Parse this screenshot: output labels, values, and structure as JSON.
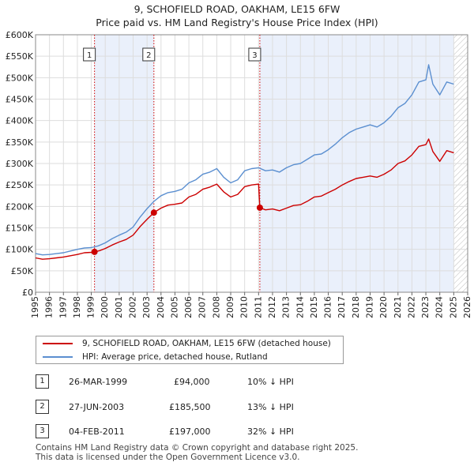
{
  "chart_data": {
    "type": "line",
    "title": "9, SCHOFIELD ROAD, OAKHAM, LE15 6FW",
    "subtitle": "Price paid vs. HM Land Registry's House Price Index (HPI)",
    "xlim": [
      1995,
      2026
    ],
    "ylim": [
      0,
      600000
    ],
    "yticks": [
      {
        "value": 0,
        "label": "£0"
      },
      {
        "value": 50000,
        "label": "£50K"
      },
      {
        "value": 100000,
        "label": "£100K"
      },
      {
        "value": 150000,
        "label": "£150K"
      },
      {
        "value": 200000,
        "label": "£200K"
      },
      {
        "value": 250000,
        "label": "£250K"
      },
      {
        "value": 300000,
        "label": "£300K"
      },
      {
        "value": 350000,
        "label": "£350K"
      },
      {
        "value": 400000,
        "label": "£400K"
      },
      {
        "value": 450000,
        "label": "£450K"
      },
      {
        "value": 500000,
        "label": "£500K"
      },
      {
        "value": 550000,
        "label": "£550K"
      },
      {
        "value": 600000,
        "label": "£600K"
      }
    ],
    "xticks": [
      "1995",
      "1996",
      "1997",
      "1998",
      "1999",
      "2000",
      "2001",
      "2002",
      "2003",
      "2004",
      "2005",
      "2006",
      "2007",
      "2008",
      "2009",
      "2010",
      "2011",
      "2012",
      "2013",
      "2014",
      "2015",
      "2016",
      "2017",
      "2018",
      "2019",
      "2020",
      "2021",
      "2022",
      "2023",
      "2024",
      "2025",
      "2026"
    ],
    "shaded_spans": [
      [
        1999.23,
        2003.49
      ],
      [
        2011.09,
        2025.0
      ]
    ],
    "hatched_after": 2025.0,
    "series": [
      {
        "name": "HPI: Average price, detached house, Rutland",
        "color": "#5b8fd0",
        "x": [
          1995,
          1995.5,
          1996,
          1996.5,
          1997,
          1997.5,
          1998,
          1998.5,
          1999,
          1999.5,
          2000,
          2000.5,
          2001,
          2001.5,
          2002,
          2002.5,
          2003,
          2003.5,
          2004,
          2004.5,
          2005,
          2005.5,
          2006,
          2006.5,
          2007,
          2007.5,
          2008,
          2008.5,
          2009,
          2009.5,
          2010,
          2010.5,
          2011,
          2011.5,
          2012,
          2012.5,
          2013,
          2013.5,
          2014,
          2014.5,
          2015,
          2015.5,
          2016,
          2016.5,
          2017,
          2017.5,
          2018,
          2018.5,
          2019,
          2019.5,
          2020,
          2020.5,
          2021,
          2021.5,
          2022,
          2022.5,
          2023,
          2023.2,
          2023.5,
          2024,
          2024.5,
          2025
        ],
        "y": [
          90000,
          87000,
          88000,
          90000,
          92000,
          96000,
          100000,
          103000,
          104000,
          108000,
          115000,
          125000,
          133000,
          140000,
          152000,
          175000,
          195000,
          212000,
          225000,
          232000,
          235000,
          240000,
          255000,
          262000,
          275000,
          280000,
          288000,
          268000,
          255000,
          262000,
          283000,
          288000,
          290000,
          283000,
          285000,
          280000,
          290000,
          297000,
          300000,
          310000,
          320000,
          322000,
          332000,
          345000,
          360000,
          372000,
          380000,
          385000,
          390000,
          385000,
          395000,
          410000,
          430000,
          440000,
          460000,
          490000,
          495000,
          530000,
          485000,
          460000,
          490000,
          485000
        ]
      },
      {
        "name": "9, SCHOFIELD ROAD, OAKHAM, LE15 6FW (detached house)",
        "color": "#cc0000",
        "x": [
          1995,
          1995.5,
          1996,
          1996.5,
          1997,
          1997.5,
          1998,
          1998.5,
          1999,
          1999.23,
          1999.6,
          2000,
          2000.5,
          2001,
          2001.5,
          2002,
          2002.5,
          2003,
          2003.49,
          2004,
          2004.5,
          2005,
          2005.5,
          2006,
          2006.5,
          2007,
          2007.5,
          2008,
          2008.5,
          2009,
          2009.5,
          2010,
          2010.5,
          2011,
          2011.09,
          2011.5,
          2012,
          2012.5,
          2013,
          2013.5,
          2014,
          2014.5,
          2015,
          2015.5,
          2016,
          2016.5,
          2017,
          2017.5,
          2018,
          2018.5,
          2019,
          2019.5,
          2020,
          2020.5,
          2021,
          2021.5,
          2022,
          2022.5,
          2023,
          2023.2,
          2023.5,
          2024,
          2024.5,
          2025
        ],
        "y": [
          80000,
          77000,
          78000,
          80000,
          82000,
          85000,
          88000,
          92000,
          93000,
          94000,
          97000,
          102000,
          110000,
          117000,
          123000,
          133000,
          153000,
          170000,
          185500,
          196000,
          203000,
          205000,
          208000,
          222000,
          228000,
          240000,
          245000,
          252000,
          234000,
          222000,
          228000,
          246000,
          250000,
          252000,
          197000,
          192000,
          194000,
          190000,
          196000,
          202000,
          204000,
          212000,
          222000,
          224000,
          232000,
          240000,
          250000,
          258000,
          265000,
          268000,
          271000,
          268000,
          275000,
          285000,
          300000,
          306000,
          320000,
          340000,
          344000,
          357000,
          328000,
          305000,
          330000,
          325000
        ]
      }
    ],
    "sales": [
      {
        "id": "1",
        "x": 1999.23,
        "price": 94000
      },
      {
        "id": "2",
        "x": 2003.49,
        "price": 185500
      },
      {
        "id": "3",
        "x": 2011.09,
        "price": 197000
      }
    ]
  },
  "legend": {
    "property": "9, SCHOFIELD ROAD, OAKHAM, LE15 6FW (detached house)",
    "hpi": "HPI: Average price, detached house, Rutland"
  },
  "transactions": [
    {
      "num": "1",
      "date": "26-MAR-1999",
      "price": "£94,000",
      "hpi": "10% ↓ HPI"
    },
    {
      "num": "2",
      "date": "27-JUN-2003",
      "price": "£185,500",
      "hpi": "13% ↓ HPI"
    },
    {
      "num": "3",
      "date": "04-FEB-2011",
      "price": "£197,000",
      "hpi": "32% ↓ HPI"
    }
  ],
  "footer": {
    "line1": "Contains HM Land Registry data © Crown copyright and database right 2025.",
    "line2": "This data is licensed under the Open Government Licence v3.0."
  },
  "colors": {
    "red": "#cc0000",
    "blue": "#5b8fd0",
    "shade": "#eaf0fb",
    "grid": "#dddddd"
  }
}
